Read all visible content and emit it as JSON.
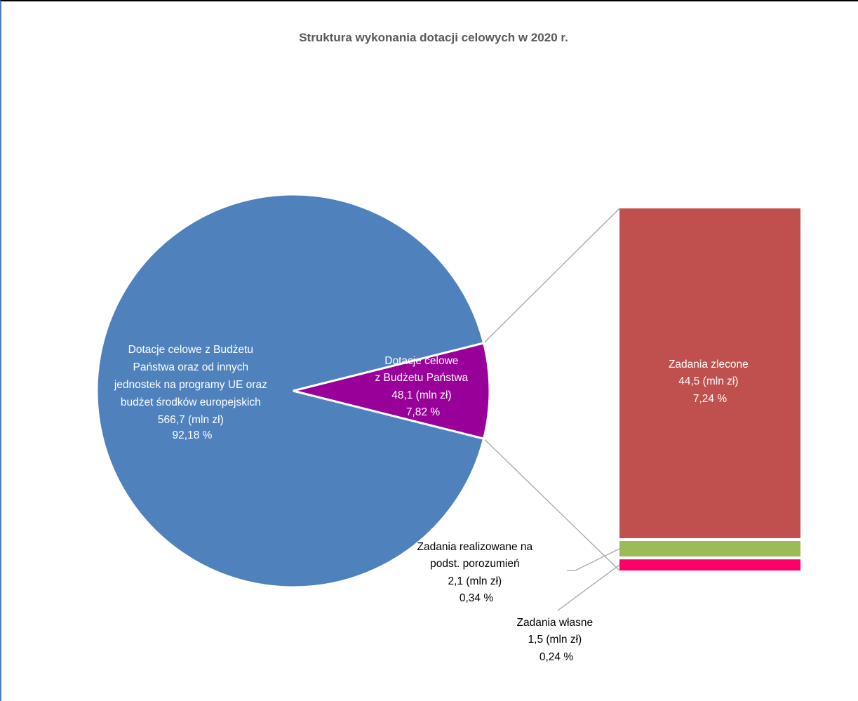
{
  "chart_data": {
    "type": "bar-of-pie",
    "title": "Struktura wykonania  dotacji celowych w 2020 r.",
    "unit": "mln zł",
    "pie": [
      {
        "lines": [
          "Dotacje celowe  z Budżetu",
          "Państwa oraz  od innych",
          "jednostek na programy UE oraz",
          "budżet środków europejskich",
          "566,7 (mln zł)",
          "92,18 %"
        ],
        "value": 566.7,
        "percent": 92.18,
        "color": "#4f81bd"
      },
      {
        "lines": [
          "Dotacje celowe",
          "z Budżetu Państwa",
          "48,1 (mln zł)",
          "7,82 %"
        ],
        "value": 48.1,
        "percent": 7.82,
        "color": "#990099"
      }
    ],
    "bar": [
      {
        "lines": [
          "Zadania zlecone",
          "44,5 (mln zł)",
          "7,24 %"
        ],
        "value": 44.5,
        "percent": 7.24,
        "color": "#c0504d"
      },
      {
        "lines": [
          "Zadania realizowane na",
          "podst. porozumień",
          "2,1 (mln zł)",
          "0,34 %"
        ],
        "value": 2.1,
        "percent": 0.34,
        "color": "#9bbb59"
      },
      {
        "lines": [
          "Zadania własne",
          "1,5 (mln zł)",
          "0,24 %"
        ],
        "value": 1.5,
        "percent": 0.24,
        "color": "#ff0066"
      }
    ],
    "colors": {
      "connector": "#a6a6a6",
      "title": "#595959",
      "label_dark": "#000000",
      "label_light": "#ffffff"
    }
  }
}
